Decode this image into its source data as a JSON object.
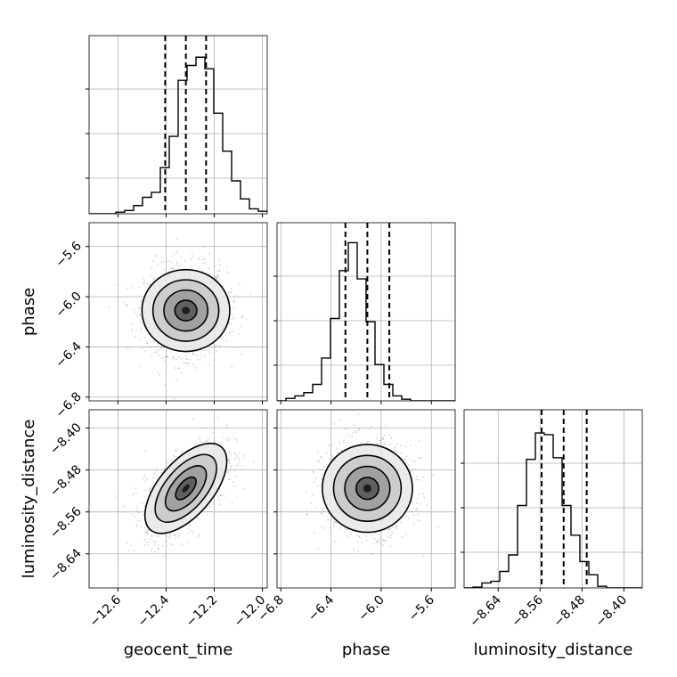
{
  "chart_data": {
    "type": "corner",
    "parameters": [
      "geocent_time",
      "phase",
      "luminosity_distance"
    ],
    "axis_labels": {
      "geocent_time": "geocent_time",
      "phase": "phase",
      "luminosity_distance": "luminosity_distance"
    },
    "ranges": {
      "geocent_time": [
        -12.72,
        -11.98
      ],
      "phase": [
        -6.83,
        -5.41
      ],
      "luminosity_distance": [
        -8.705,
        -8.365
      ]
    },
    "ticks": {
      "geocent_time": [
        -12.6,
        -12.4,
        -12.2,
        -12.0
      ],
      "phase": [
        -6.8,
        -6.4,
        -6.0,
        -5.6
      ],
      "luminosity_distance": [
        -8.64,
        -8.56,
        -8.48,
        -8.4
      ]
    },
    "tick_labels": {
      "geocent_time": [
        "−12.6",
        "−12.4",
        "−12.2",
        "−12.0"
      ],
      "phase": [
        "−6.8",
        "−6.4",
        "−6.0",
        "−5.6"
      ],
      "luminosity_distance": [
        "−8.64",
        "−8.56",
        "−8.48",
        "−8.40"
      ]
    },
    "quantiles": {
      "geocent_time": [
        -12.404,
        -12.318,
        -12.234
      ],
      "phase": [
        -6.285,
        -6.11,
        -5.935
      ],
      "luminosity_distance": [
        -8.557,
        -8.515,
        -8.471
      ]
    },
    "mean": {
      "geocent_time": -12.318,
      "phase": -6.11,
      "luminosity_distance": -8.515
    },
    "sigma": {
      "geocent_time": 0.085,
      "phase": 0.175,
      "luminosity_distance": 0.043
    },
    "correlations": {
      "geocent_time|phase": 0.0,
      "geocent_time|luminosity_distance": 0.6,
      "phase|luminosity_distance": 0.0
    },
    "histograms": {
      "geocent_time": {
        "bin_start": -12.72,
        "bin_width": 0.037,
        "heights": [
          0,
          0,
          0,
          0.01,
          0.02,
          0.05,
          0.1,
          0.13,
          0.28,
          0.47,
          0.81,
          0.9,
          0.95,
          0.88,
          0.61,
          0.38,
          0.2,
          0.09,
          0.03,
          0.015
        ]
      },
      "phase": {
        "bin_start": -6.83,
        "bin_width": 0.071,
        "heights": [
          0,
          0.015,
          0.03,
          0.05,
          0.1,
          0.26,
          0.5,
          0.79,
          0.96,
          0.74,
          0.48,
          0.22,
          0.1,
          0.03,
          0.01,
          0,
          0,
          0,
          0,
          0
        ]
      },
      "luminosity_distance": {
        "bin_start": -8.705,
        "bin_width": 0.017,
        "heights": [
          0,
          0.005,
          0.03,
          0.04,
          0.1,
          0.2,
          0.5,
          0.78,
          0.94,
          0.93,
          0.79,
          0.5,
          0.32,
          0.16,
          0.08,
          0.01,
          0,
          0,
          0,
          0
        ]
      }
    },
    "contour_levels_sigma": [
      0.5,
      1.0,
      1.5,
      2.0
    ],
    "grid": true,
    "colors": {
      "lines": "#000000",
      "scatter": "#888888",
      "grid": "#b0b0b0"
    }
  }
}
